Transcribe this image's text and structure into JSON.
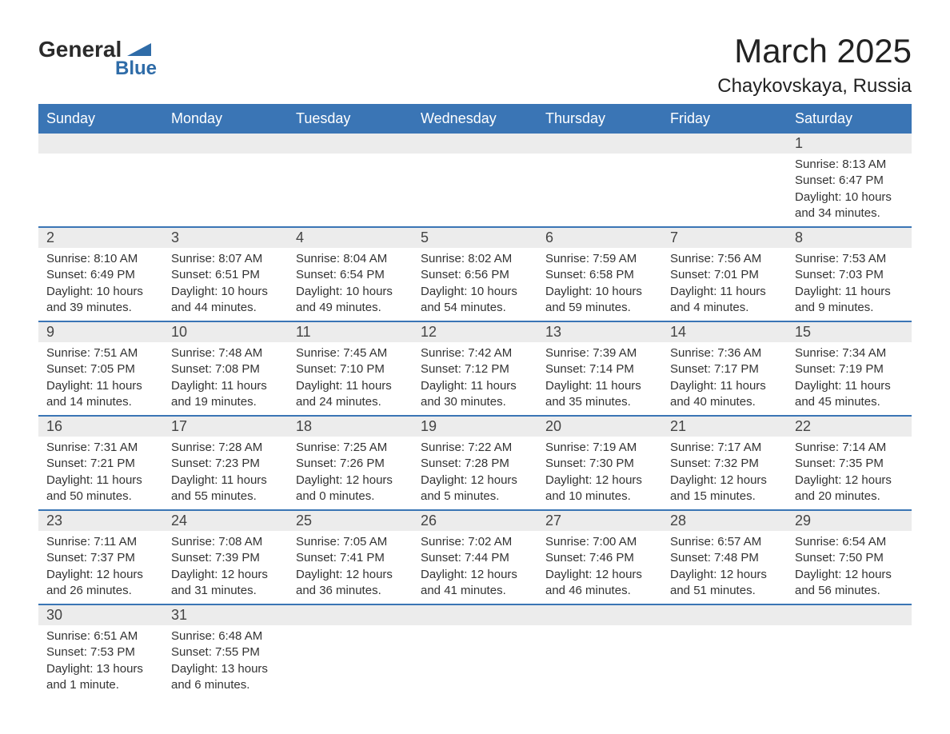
{
  "logo": {
    "word1": "General",
    "word2": "Blue"
  },
  "title": {
    "month": "March 2025",
    "location": "Chaykovskaya, Russia"
  },
  "colors": {
    "header_bg": "#3a75b5",
    "header_text": "#ffffff",
    "daynum_bg": "#ececec",
    "border": "#3a75b5",
    "body_text": "#333333",
    "logo_blue": "#2f6ca8"
  },
  "day_headers": [
    "Sunday",
    "Monday",
    "Tuesday",
    "Wednesday",
    "Thursday",
    "Friday",
    "Saturday"
  ],
  "weeks": [
    {
      "nums": [
        "",
        "",
        "",
        "",
        "",
        "",
        "1"
      ],
      "cells": [
        [],
        [],
        [],
        [],
        [],
        [],
        [
          "Sunrise: 8:13 AM",
          "Sunset: 6:47 PM",
          "Daylight: 10 hours",
          "and 34 minutes."
        ]
      ]
    },
    {
      "nums": [
        "2",
        "3",
        "4",
        "5",
        "6",
        "7",
        "8"
      ],
      "cells": [
        [
          "Sunrise: 8:10 AM",
          "Sunset: 6:49 PM",
          "Daylight: 10 hours",
          "and 39 minutes."
        ],
        [
          "Sunrise: 8:07 AM",
          "Sunset: 6:51 PM",
          "Daylight: 10 hours",
          "and 44 minutes."
        ],
        [
          "Sunrise: 8:04 AM",
          "Sunset: 6:54 PM",
          "Daylight: 10 hours",
          "and 49 minutes."
        ],
        [
          "Sunrise: 8:02 AM",
          "Sunset: 6:56 PM",
          "Daylight: 10 hours",
          "and 54 minutes."
        ],
        [
          "Sunrise: 7:59 AM",
          "Sunset: 6:58 PM",
          "Daylight: 10 hours",
          "and 59 minutes."
        ],
        [
          "Sunrise: 7:56 AM",
          "Sunset: 7:01 PM",
          "Daylight: 11 hours",
          "and 4 minutes."
        ],
        [
          "Sunrise: 7:53 AM",
          "Sunset: 7:03 PM",
          "Daylight: 11 hours",
          "and 9 minutes."
        ]
      ]
    },
    {
      "nums": [
        "9",
        "10",
        "11",
        "12",
        "13",
        "14",
        "15"
      ],
      "cells": [
        [
          "Sunrise: 7:51 AM",
          "Sunset: 7:05 PM",
          "Daylight: 11 hours",
          "and 14 minutes."
        ],
        [
          "Sunrise: 7:48 AM",
          "Sunset: 7:08 PM",
          "Daylight: 11 hours",
          "and 19 minutes."
        ],
        [
          "Sunrise: 7:45 AM",
          "Sunset: 7:10 PM",
          "Daylight: 11 hours",
          "and 24 minutes."
        ],
        [
          "Sunrise: 7:42 AM",
          "Sunset: 7:12 PM",
          "Daylight: 11 hours",
          "and 30 minutes."
        ],
        [
          "Sunrise: 7:39 AM",
          "Sunset: 7:14 PM",
          "Daylight: 11 hours",
          "and 35 minutes."
        ],
        [
          "Sunrise: 7:36 AM",
          "Sunset: 7:17 PM",
          "Daylight: 11 hours",
          "and 40 minutes."
        ],
        [
          "Sunrise: 7:34 AM",
          "Sunset: 7:19 PM",
          "Daylight: 11 hours",
          "and 45 minutes."
        ]
      ]
    },
    {
      "nums": [
        "16",
        "17",
        "18",
        "19",
        "20",
        "21",
        "22"
      ],
      "cells": [
        [
          "Sunrise: 7:31 AM",
          "Sunset: 7:21 PM",
          "Daylight: 11 hours",
          "and 50 minutes."
        ],
        [
          "Sunrise: 7:28 AM",
          "Sunset: 7:23 PM",
          "Daylight: 11 hours",
          "and 55 minutes."
        ],
        [
          "Sunrise: 7:25 AM",
          "Sunset: 7:26 PM",
          "Daylight: 12 hours",
          "and 0 minutes."
        ],
        [
          "Sunrise: 7:22 AM",
          "Sunset: 7:28 PM",
          "Daylight: 12 hours",
          "and 5 minutes."
        ],
        [
          "Sunrise: 7:19 AM",
          "Sunset: 7:30 PM",
          "Daylight: 12 hours",
          "and 10 minutes."
        ],
        [
          "Sunrise: 7:17 AM",
          "Sunset: 7:32 PM",
          "Daylight: 12 hours",
          "and 15 minutes."
        ],
        [
          "Sunrise: 7:14 AM",
          "Sunset: 7:35 PM",
          "Daylight: 12 hours",
          "and 20 minutes."
        ]
      ]
    },
    {
      "nums": [
        "23",
        "24",
        "25",
        "26",
        "27",
        "28",
        "29"
      ],
      "cells": [
        [
          "Sunrise: 7:11 AM",
          "Sunset: 7:37 PM",
          "Daylight: 12 hours",
          "and 26 minutes."
        ],
        [
          "Sunrise: 7:08 AM",
          "Sunset: 7:39 PM",
          "Daylight: 12 hours",
          "and 31 minutes."
        ],
        [
          "Sunrise: 7:05 AM",
          "Sunset: 7:41 PM",
          "Daylight: 12 hours",
          "and 36 minutes."
        ],
        [
          "Sunrise: 7:02 AM",
          "Sunset: 7:44 PM",
          "Daylight: 12 hours",
          "and 41 minutes."
        ],
        [
          "Sunrise: 7:00 AM",
          "Sunset: 7:46 PM",
          "Daylight: 12 hours",
          "and 46 minutes."
        ],
        [
          "Sunrise: 6:57 AM",
          "Sunset: 7:48 PM",
          "Daylight: 12 hours",
          "and 51 minutes."
        ],
        [
          "Sunrise: 6:54 AM",
          "Sunset: 7:50 PM",
          "Daylight: 12 hours",
          "and 56 minutes."
        ]
      ]
    },
    {
      "nums": [
        "30",
        "31",
        "",
        "",
        "",
        "",
        ""
      ],
      "cells": [
        [
          "Sunrise: 6:51 AM",
          "Sunset: 7:53 PM",
          "Daylight: 13 hours",
          "and 1 minute."
        ],
        [
          "Sunrise: 6:48 AM",
          "Sunset: 7:55 PM",
          "Daylight: 13 hours",
          "and 6 minutes."
        ],
        [],
        [],
        [],
        [],
        []
      ]
    }
  ]
}
